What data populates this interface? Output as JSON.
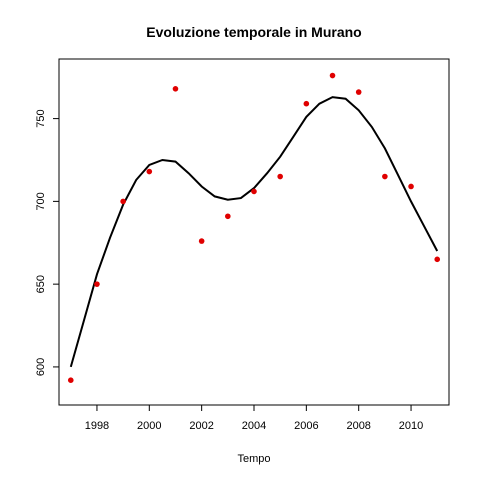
{
  "chart_data": {
    "type": "scatter",
    "title": "Evoluzione temporale in Murano",
    "xlabel": "Tempo",
    "ylabel": "",
    "xlim": [
      1996.55,
      2011.45
    ],
    "ylim": [
      577,
      786
    ],
    "x_ticks": [
      1998,
      2000,
      2002,
      2004,
      2006,
      2008,
      2010
    ],
    "x_tick_labels": [
      "1998",
      "2000",
      "2002",
      "2004",
      "2006",
      "2008",
      "2010"
    ],
    "y_ticks": [
      600,
      650,
      700,
      750
    ],
    "y_tick_labels": [
      "600",
      "650",
      "700",
      "750"
    ],
    "grid": false,
    "legend": "none",
    "point_color": "#e00000",
    "line_color": "#000000",
    "points": {
      "x": [
        1997,
        1998,
        1999,
        2000,
        2001,
        2002,
        2003,
        2004,
        2005,
        2006,
        2007,
        2008,
        2009,
        2010,
        2011
      ],
      "y": [
        592,
        650,
        700,
        718,
        768,
        676,
        691,
        706,
        715,
        759,
        776,
        766,
        715,
        709,
        665
      ]
    },
    "smooth_line": {
      "x": [
        1997,
        1997.5,
        1998,
        1998.5,
        1999,
        1999.5,
        2000,
        2000.5,
        2001,
        2001.5,
        2002,
        2002.5,
        2003,
        2003.5,
        2004,
        2004.5,
        2005,
        2005.5,
        2006,
        2006.5,
        2007,
        2007.5,
        2008,
        2008.5,
        2009,
        2009.5,
        2010,
        2010.5,
        2011
      ],
      "y": [
        600,
        628,
        656,
        678,
        698,
        713,
        722,
        725,
        724,
        717,
        709,
        703,
        701,
        702,
        708,
        717,
        727,
        739,
        751,
        759,
        763,
        762,
        755,
        745,
        732,
        716,
        700,
        685,
        670
      ]
    }
  }
}
